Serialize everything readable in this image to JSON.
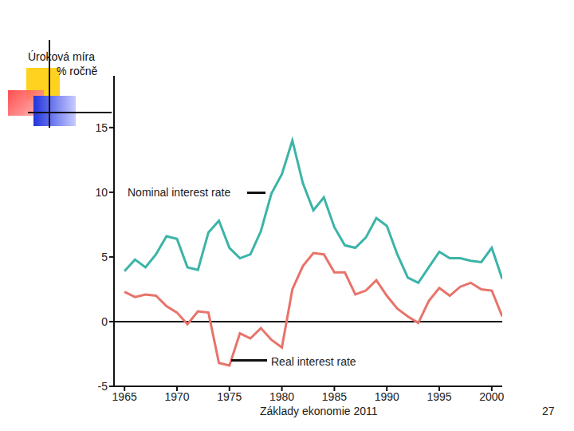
{
  "chart_data": {
    "type": "line",
    "ylabel": [
      "Úroková míra",
      "% ročně"
    ],
    "x": [
      1965,
      1966,
      1967,
      1968,
      1969,
      1970,
      1971,
      1972,
      1973,
      1974,
      1975,
      1976,
      1977,
      1978,
      1979,
      1980,
      1981,
      1982,
      1983,
      1984,
      1985,
      1986,
      1987,
      1988,
      1989,
      1990,
      1991,
      1992,
      1993,
      1994,
      1995,
      1996,
      1997,
      1998,
      1999,
      2000,
      2001
    ],
    "series": [
      {
        "name": "Nominal interest rate",
        "color": "#3cb4a8",
        "values": [
          3.9,
          4.8,
          4.2,
          5.2,
          6.6,
          6.4,
          4.2,
          4.0,
          6.9,
          7.8,
          5.7,
          4.9,
          5.2,
          7.0,
          9.9,
          11.4,
          14.0,
          10.7,
          8.6,
          9.6,
          7.3,
          5.9,
          5.7,
          6.5,
          8.0,
          7.4,
          5.2,
          3.4,
          3.0,
          4.2,
          5.4,
          4.9,
          4.9,
          4.7,
          4.6,
          5.7,
          3.3
        ]
      },
      {
        "name": "Real interest rate",
        "color": "#e8736a",
        "values": [
          2.3,
          1.9,
          2.1,
          2.0,
          1.2,
          0.7,
          -0.2,
          0.8,
          0.7,
          -3.2,
          -3.4,
          -0.9,
          -1.3,
          -0.5,
          -1.4,
          -2.0,
          2.5,
          4.3,
          5.3,
          5.2,
          3.8,
          3.8,
          2.1,
          2.4,
          3.2,
          2.0,
          1.0,
          0.4,
          -0.1,
          1.6,
          2.6,
          2.0,
          2.7,
          3.0,
          2.5,
          2.4,
          0.4
        ]
      }
    ],
    "xlim": [
      1964,
      2001
    ],
    "xticks": [
      1965,
      1970,
      1975,
      1980,
      1985,
      1990,
      1995,
      2000
    ],
    "ylim": [
      -5,
      19
    ],
    "yticks": [
      -5,
      0,
      5,
      10,
      15
    ],
    "footer": "Základy ekonomie 2011",
    "page": 27
  }
}
